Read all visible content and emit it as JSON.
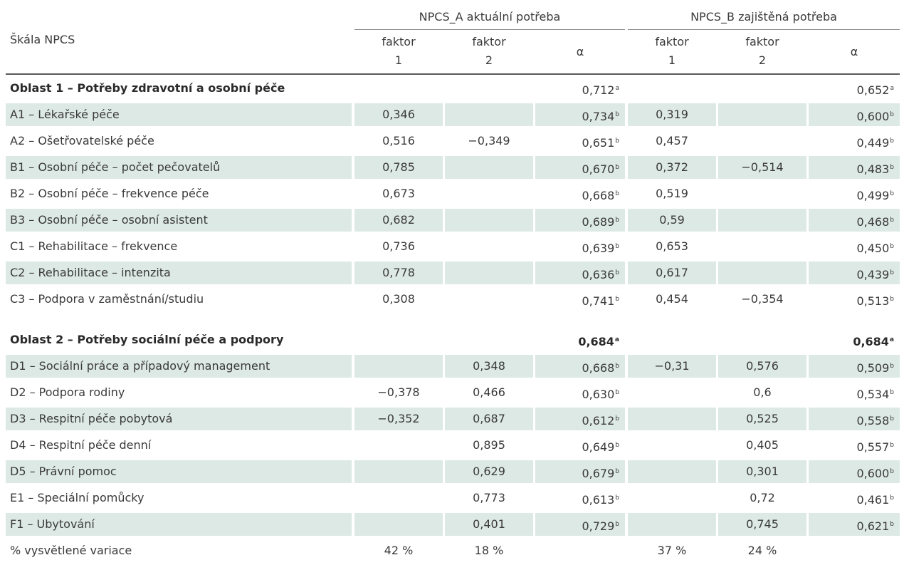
{
  "header": {
    "scale_label": "Škála NPCS",
    "group_a": "NPCS_A aktuální potřeba",
    "group_b": "NPCS_B zajištěná potřeba",
    "factor_word": "faktor",
    "factor1_num": "1",
    "factor2_num": "2",
    "alpha": "α"
  },
  "area1": {
    "label": "Oblast 1 – Potřeby zdravotní a osobní péče",
    "alpha_a": "0,712",
    "alpha_a_sup": "a",
    "alpha_b": "0,652",
    "alpha_b_sup": "a",
    "rows": [
      {
        "label": "A1 – Lékařské péče",
        "a1": "0,346",
        "a2": "",
        "aa": "0,734",
        "aa_sup": "b",
        "b1": "0,319",
        "b2": "",
        "ba": "0,600",
        "ba_sup": "b"
      },
      {
        "label": "A2 – Ošetřovatelské péče",
        "a1": "0,516",
        "a2": "−0,349",
        "aa": "0,651",
        "aa_sup": "b",
        "b1": "0,457",
        "b2": "",
        "ba": "0,449",
        "ba_sup": "b"
      },
      {
        "label": "B1 – Osobní péče – počet pečovatelů",
        "a1": "0,785",
        "a2": "",
        "aa": "0,670",
        "aa_sup": "b",
        "b1": "0,372",
        "b2": "−0,514",
        "ba": "0,483",
        "ba_sup": "b"
      },
      {
        "label": "B2 – Osobní péče – frekvence péče",
        "a1": "0,673",
        "a2": "",
        "aa": "0,668",
        "aa_sup": "b",
        "b1": "0,519",
        "b2": "",
        "ba": "0,499",
        "ba_sup": "b"
      },
      {
        "label": "B3 – Osobní péče – osobní asistent",
        "a1": "0,682",
        "a2": "",
        "aa": "0,689",
        "aa_sup": "b",
        "b1": "0,59",
        "b2": "",
        "ba": "0,468",
        "ba_sup": "b"
      },
      {
        "label": "C1 – Rehabilitace – frekvence",
        "a1": "0,736",
        "a2": "",
        "aa": "0,639",
        "aa_sup": "b",
        "b1": "0,653",
        "b2": "",
        "ba": "0,450",
        "ba_sup": "b"
      },
      {
        "label": "C2 – Rehabilitace – intenzita",
        "a1": "0,778",
        "a2": "",
        "aa": "0,636",
        "aa_sup": "b",
        "b1": "0,617",
        "b2": "",
        "ba": "0,439",
        "ba_sup": "b"
      },
      {
        "label": "C3 – Podpora v zaměstnání/studiu",
        "a1": "0,308",
        "a2": "",
        "aa": "0,741",
        "aa_sup": "b",
        "b1": "0,454",
        "b2": "−0,354",
        "ba": "0,513",
        "ba_sup": "b"
      }
    ]
  },
  "area2": {
    "label": "Oblast 2 – Potřeby sociální péče a podpory",
    "alpha_a": "0,684",
    "alpha_a_sup": "a",
    "alpha_b": "0,684",
    "alpha_b_sup": "a",
    "rows": [
      {
        "label": "D1 – Sociální práce a případový management",
        "a1": "",
        "a2": "0,348",
        "aa": "0,668",
        "aa_sup": "b",
        "b1": "−0,31",
        "b2": "0,576",
        "ba": "0,509",
        "ba_sup": "b"
      },
      {
        "label": "D2 – Podpora rodiny",
        "a1": "−0,378",
        "a2": "0,466",
        "aa": "0,630",
        "aa_sup": "b",
        "b1": "",
        "b2": "0,6",
        "ba": "0,534",
        "ba_sup": "b"
      },
      {
        "label": "D3 – Respitní péče pobytová",
        "a1": "−0,352",
        "a2": "0,687",
        "aa": "0,612",
        "aa_sup": "b",
        "b1": "",
        "b2": "0,525",
        "ba": "0,558",
        "ba_sup": "b"
      },
      {
        "label": "D4 – Respitní péče denní",
        "a1": "",
        "a2": "0,895",
        "aa": "0,649",
        "aa_sup": "b",
        "b1": "",
        "b2": "0,405",
        "ba": "0,557",
        "ba_sup": "b"
      },
      {
        "label": "D5 – Právní pomoc",
        "a1": "",
        "a2": "0,629",
        "aa": "0,679",
        "aa_sup": "b",
        "b1": "",
        "b2": "0,301",
        "ba": "0,600",
        "ba_sup": "b"
      },
      {
        "label": "E1 – Speciální pomůcky",
        "a1": "",
        "a2": "0,773",
        "aa": "0,613",
        "aa_sup": "b",
        "b1": "",
        "b2": "0,72",
        "ba": "0,461",
        "ba_sup": "b"
      },
      {
        "label": "F1 – Ubytování",
        "a1": "",
        "a2": "0,401",
        "aa": "0,729",
        "aa_sup": "b",
        "b1": "",
        "b2": "0,745",
        "ba": "0,621",
        "ba_sup": "b"
      }
    ]
  },
  "footer": {
    "label": "% vysvětlené variace",
    "a1": "42 %",
    "a2": "18 %",
    "b1": "37 %",
    "b2": "24 %"
  },
  "colors": {
    "shade": "#dde9e4",
    "text": "#3a3a3a"
  }
}
